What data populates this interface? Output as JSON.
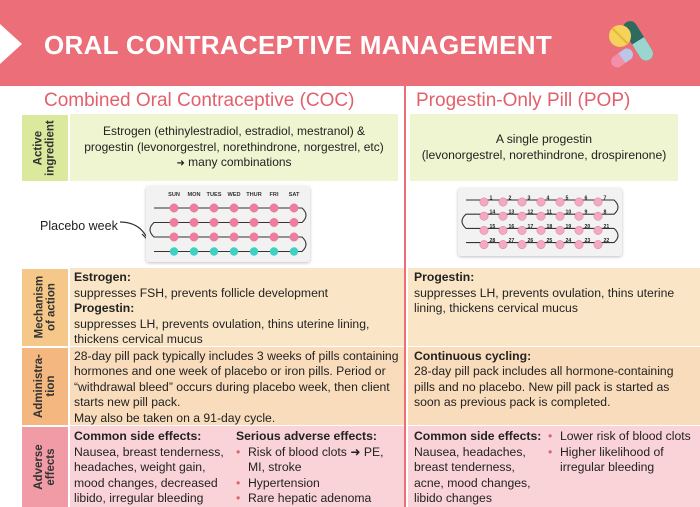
{
  "header": {
    "title": "ORAL CONTRACEPTIVE MANAGEMENT",
    "icon": "pills-icon",
    "background_color": "#eb6e78"
  },
  "columns": {
    "coc_title": "Combined Oral Contraceptive (COC)",
    "pop_title": "Progestin-Only Pill (POP)"
  },
  "rows": {
    "active_ingredient": {
      "label": "Active ingredient",
      "coc": {
        "text_line1": "Estrogen (ethinylestradiol, estradiol, mestranol) &",
        "text_line2": "progestin (levonorgestrel, norethindrone, norgestrel, etc)",
        "text_line3": "many combinations",
        "arrow": "➜"
      },
      "pop": {
        "text_line1": "A single progestin",
        "text_line2": "(levonorgestrel, norethindrone, drospirenone)"
      }
    },
    "pill_pack": {
      "placebo_label": "Placebo week",
      "days": [
        "SUN",
        "MON",
        "TUES",
        "WED",
        "THUR",
        "FRI",
        "SAT"
      ],
      "pop_numbers": [
        [
          "1",
          "2",
          "3",
          "4",
          "5",
          "6",
          "7"
        ],
        [
          "14",
          "13",
          "12",
          "11",
          "10",
          "9",
          "8"
        ],
        [
          "15",
          "16",
          "17",
          "18",
          "19",
          "20",
          "21"
        ],
        [
          "28",
          "27",
          "26",
          "25",
          "24",
          "23",
          "22"
        ]
      ],
      "hormone_color": "#f07d9f",
      "placebo_color": "#3ed0c3"
    },
    "mechanism": {
      "label": "Mechanism of action",
      "coc": {
        "estrogen_head": "Estrogen:",
        "estrogen_text": "suppresses FSH, prevents follicle development",
        "progestin_head": "Progestin:",
        "progestin_text": "suppresses LH, prevents ovulation, thins uterine lining, thickens cervical mucus"
      },
      "pop": {
        "progestin_head": "Progestin:",
        "progestin_text": "suppresses LH, prevents ovulation, thins uterine lining, thickens cervical mucus"
      }
    },
    "administration": {
      "label": "Administra- tion",
      "coc": {
        "text": "28-day pill pack typically includes 3 weeks of pills containing hormones and one week of placebo or iron pills. Period or “withdrawal bleed” occurs during placebo week, then client starts new pill pack.",
        "text2": "May also be taken on a 91-day cycle."
      },
      "pop": {
        "head": "Continuous cycling:",
        "text": "28-day pill pack includes all hormone-containing pills and no placebo. New pill pack is started as soon as previous pack is completed."
      }
    },
    "adverse": {
      "label": "Adverse effects",
      "coc": {
        "common_head": "Common side effects:",
        "common_text": "Nausea, breast tenderness, headaches, weight gain, mood changes, decreased libido, irregular bleeding",
        "serious_head": "Serious adverse effects:",
        "serious_items": [
          "Risk of blood clots ➜ PE, MI, stroke",
          "Hypertension",
          "Rare hepatic adenoma"
        ]
      },
      "pop": {
        "common_head": "Common side effects:",
        "common_text": "Nausea, headaches, breast tenderness, acne, mood changes, libido changes",
        "items": [
          "Lower risk of blood clots",
          "Higher likelihood of irregular bleeding"
        ]
      }
    }
  }
}
